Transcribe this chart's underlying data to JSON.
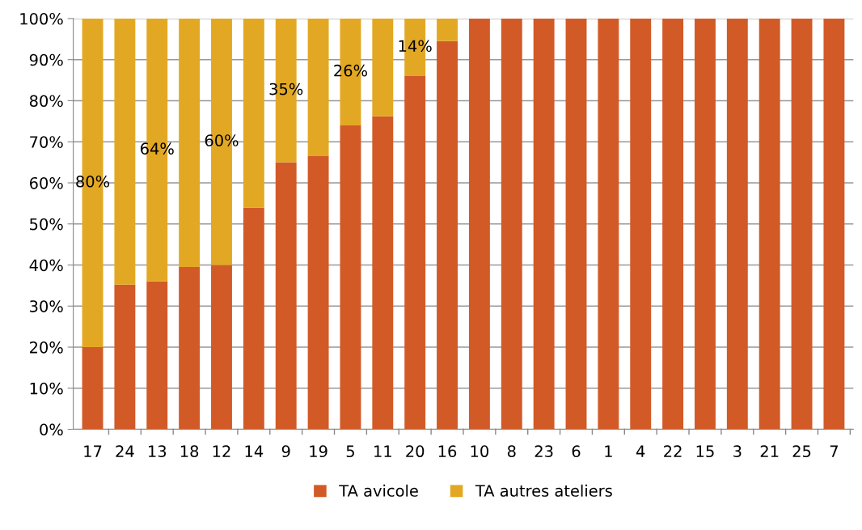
{
  "chart_data": {
    "type": "bar",
    "stacked": true,
    "categories": [
      "17",
      "24",
      "13",
      "18",
      "12",
      "14",
      "9",
      "19",
      "5",
      "11",
      "20",
      "16",
      "10",
      "8",
      "23",
      "6",
      "1",
      "4",
      "22",
      "15",
      "3",
      "21",
      "25",
      "7"
    ],
    "series": [
      {
        "name": "TA avicole",
        "color": "#d25a27",
        "values": [
          20,
          35.2,
          36,
          39.5,
          40,
          54,
          65,
          66.5,
          74,
          76.2,
          86,
          94.5,
          100,
          100,
          100,
          100,
          100,
          100,
          100,
          100,
          100,
          100,
          100,
          100
        ]
      },
      {
        "name": "TA autres ateliers",
        "color": "#e3a823",
        "values": [
          80,
          64.8,
          64,
          60.5,
          60,
          46,
          35,
          33.5,
          26,
          23.8,
          14,
          5.5,
          0,
          0,
          0,
          0,
          0,
          0,
          0,
          0,
          0,
          0,
          0,
          0
        ],
        "value_labels": [
          "80%",
          null,
          "64%",
          null,
          "60%",
          null,
          "35%",
          null,
          "26%",
          null,
          "14%",
          null,
          null,
          null,
          null,
          null,
          null,
          null,
          null,
          null,
          null,
          null,
          null,
          null
        ]
      }
    ],
    "ylim": [
      0,
      100
    ],
    "yticks": [
      {
        "value": 0,
        "label": "0%"
      },
      {
        "value": 10,
        "label": "10%"
      },
      {
        "value": 20,
        "label": "20%"
      },
      {
        "value": 30,
        "label": "30%"
      },
      {
        "value": 40,
        "label": "40%"
      },
      {
        "value": 50,
        "label": "50%"
      },
      {
        "value": 60,
        "label": "60%"
      },
      {
        "value": 70,
        "label": "70%"
      },
      {
        "value": 80,
        "label": "80%"
      },
      {
        "value": 90,
        "label": "90%"
      },
      {
        "value": 100,
        "label": "100%"
      }
    ],
    "grid": "y",
    "legend": "bottom"
  }
}
